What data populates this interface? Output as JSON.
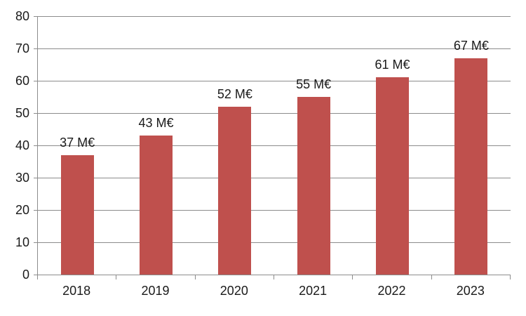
{
  "chart_data": {
    "type": "bar",
    "title": "",
    "categories": [
      "2018",
      "2019",
      "2020",
      "2021",
      "2022",
      "2023"
    ],
    "values": [
      37,
      43,
      52,
      55,
      61,
      67
    ],
    "data_labels": [
      "37 M€",
      "43 M€",
      "52 M€",
      "55 M€",
      "61 M€",
      "67 M€"
    ],
    "unit": "M€",
    "xlabel": "",
    "ylabel": "",
    "y_axis": {
      "min": 0,
      "max": 80,
      "tick_step": 10,
      "ticks": [
        0,
        10,
        20,
        30,
        40,
        50,
        60,
        70,
        80
      ]
    },
    "grid": "horizontal",
    "legend": "none",
    "colors": {
      "bar": "#BF504D",
      "gridline": "#8C8C8C",
      "axis": "#8C8C8C",
      "text": "#1A1A1A",
      "background": "#FFFFFF"
    }
  }
}
